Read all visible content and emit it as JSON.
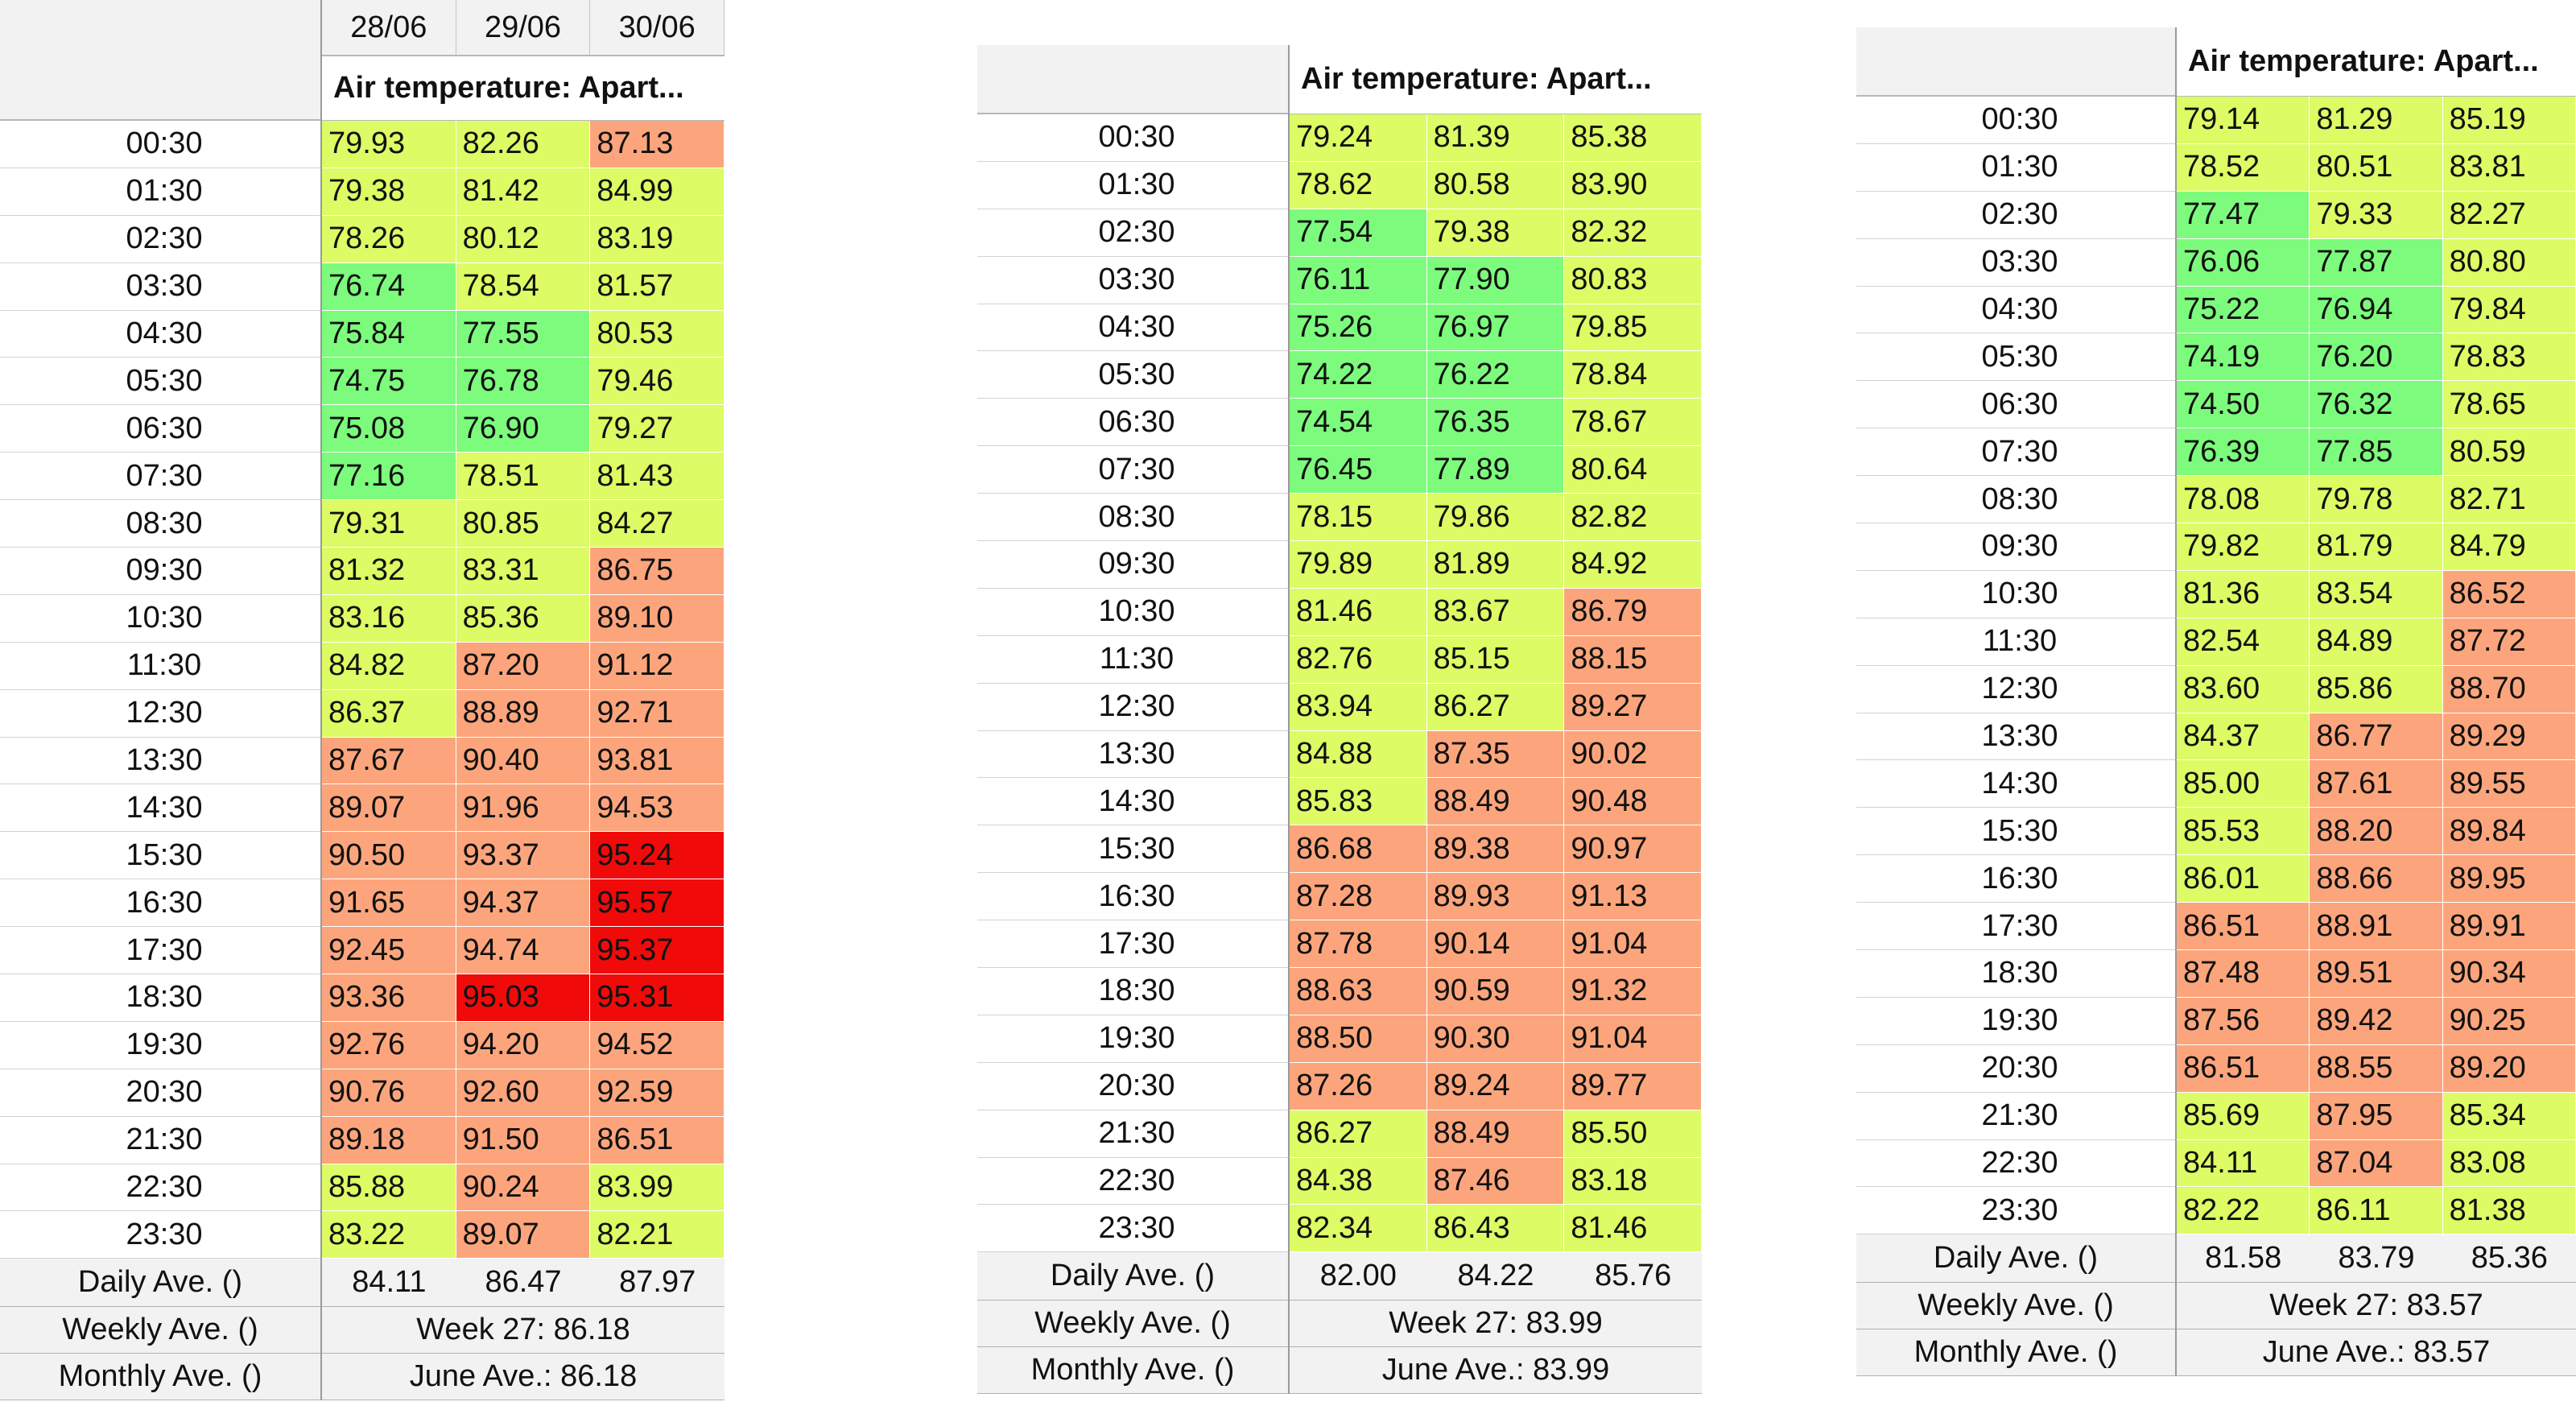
{
  "times": [
    "00:30",
    "01:30",
    "02:30",
    "03:30",
    "04:30",
    "05:30",
    "06:30",
    "07:30",
    "08:30",
    "09:30",
    "10:30",
    "11:30",
    "12:30",
    "13:30",
    "14:30",
    "15:30",
    "16:30",
    "17:30",
    "18:30",
    "19:30",
    "20:30",
    "21:30",
    "22:30",
    "23:30"
  ],
  "row_labels": {
    "daily": "Daily Ave. ()",
    "weekly": "Weekly Ave. ()",
    "monthly": "Monthly Ave. ()"
  },
  "colors": {
    "green": "#7cfb7c",
    "yellow": "#dcfb64",
    "orange": "#fca57c",
    "red": "#f00a0a"
  },
  "panels": [
    {
      "dates": [
        "28/06",
        "29/06",
        "30/06"
      ],
      "title": "Air temperature: Apart...",
      "values": [
        [
          "79.93",
          "82.26",
          "87.13"
        ],
        [
          "79.38",
          "81.42",
          "84.99"
        ],
        [
          "78.26",
          "80.12",
          "83.19"
        ],
        [
          "76.74",
          "78.54",
          "81.57"
        ],
        [
          "75.84",
          "77.55",
          "80.53"
        ],
        [
          "74.75",
          "76.78",
          "79.46"
        ],
        [
          "75.08",
          "76.90",
          "79.27"
        ],
        [
          "77.16",
          "78.51",
          "81.43"
        ],
        [
          "79.31",
          "80.85",
          "84.27"
        ],
        [
          "81.32",
          "83.31",
          "86.75"
        ],
        [
          "83.16",
          "85.36",
          "89.10"
        ],
        [
          "84.82",
          "87.20",
          "91.12"
        ],
        [
          "86.37",
          "88.89",
          "92.71"
        ],
        [
          "87.67",
          "90.40",
          "93.81"
        ],
        [
          "89.07",
          "91.96",
          "94.53"
        ],
        [
          "90.50",
          "93.37",
          "95.24"
        ],
        [
          "91.65",
          "94.37",
          "95.57"
        ],
        [
          "92.45",
          "94.74",
          "95.37"
        ],
        [
          "93.36",
          "95.03",
          "95.31"
        ],
        [
          "92.76",
          "94.20",
          "94.52"
        ],
        [
          "90.76",
          "92.60",
          "92.59"
        ],
        [
          "89.18",
          "91.50",
          "86.51"
        ],
        [
          "85.88",
          "90.24",
          "83.99"
        ],
        [
          "83.22",
          "89.07",
          "82.21"
        ]
      ],
      "daily": [
        "84.11",
        "86.47",
        "87.97"
      ],
      "weekly": "Week 27: 86.18",
      "monthly": "June Ave.: 86.18"
    },
    {
      "title": "Air temperature: Apart...",
      "values": [
        [
          "79.24",
          "81.39",
          "85.38"
        ],
        [
          "78.62",
          "80.58",
          "83.90"
        ],
        [
          "77.54",
          "79.38",
          "82.32"
        ],
        [
          "76.11",
          "77.90",
          "80.83"
        ],
        [
          "75.26",
          "76.97",
          "79.85"
        ],
        [
          "74.22",
          "76.22",
          "78.84"
        ],
        [
          "74.54",
          "76.35",
          "78.67"
        ],
        [
          "76.45",
          "77.89",
          "80.64"
        ],
        [
          "78.15",
          "79.86",
          "82.82"
        ],
        [
          "79.89",
          "81.89",
          "84.92"
        ],
        [
          "81.46",
          "83.67",
          "86.79"
        ],
        [
          "82.76",
          "85.15",
          "88.15"
        ],
        [
          "83.94",
          "86.27",
          "89.27"
        ],
        [
          "84.88",
          "87.35",
          "90.02"
        ],
        [
          "85.83",
          "88.49",
          "90.48"
        ],
        [
          "86.68",
          "89.38",
          "90.97"
        ],
        [
          "87.28",
          "89.93",
          "91.13"
        ],
        [
          "87.78",
          "90.14",
          "91.04"
        ],
        [
          "88.63",
          "90.59",
          "91.32"
        ],
        [
          "88.50",
          "90.30",
          "91.04"
        ],
        [
          "87.26",
          "89.24",
          "89.77"
        ],
        [
          "86.27",
          "88.49",
          "85.50"
        ],
        [
          "84.38",
          "87.46",
          "83.18"
        ],
        [
          "82.34",
          "86.43",
          "81.46"
        ]
      ],
      "daily": [
        "82.00",
        "84.22",
        "85.76"
      ],
      "weekly": "Week 27: 83.99",
      "monthly": "June Ave.: 83.99"
    },
    {
      "title": "Air temperature: Apart...",
      "values": [
        [
          "79.14",
          "81.29",
          "85.19"
        ],
        [
          "78.52",
          "80.51",
          "83.81"
        ],
        [
          "77.47",
          "79.33",
          "82.27"
        ],
        [
          "76.06",
          "77.87",
          "80.80"
        ],
        [
          "75.22",
          "76.94",
          "79.84"
        ],
        [
          "74.19",
          "76.20",
          "78.83"
        ],
        [
          "74.50",
          "76.32",
          "78.65"
        ],
        [
          "76.39",
          "77.85",
          "80.59"
        ],
        [
          "78.08",
          "79.78",
          "82.71"
        ],
        [
          "79.82",
          "81.79",
          "84.79"
        ],
        [
          "81.36",
          "83.54",
          "86.52"
        ],
        [
          "82.54",
          "84.89",
          "87.72"
        ],
        [
          "83.60",
          "85.86",
          "88.70"
        ],
        [
          "84.37",
          "86.77",
          "89.29"
        ],
        [
          "85.00",
          "87.61",
          "89.55"
        ],
        [
          "85.53",
          "88.20",
          "89.84"
        ],
        [
          "86.01",
          "88.66",
          "89.95"
        ],
        [
          "86.51",
          "88.91",
          "89.91"
        ],
        [
          "87.48",
          "89.51",
          "90.34"
        ],
        [
          "87.56",
          "89.42",
          "90.25"
        ],
        [
          "86.51",
          "88.55",
          "89.20"
        ],
        [
          "85.69",
          "87.95",
          "85.34"
        ],
        [
          "84.11",
          "87.04",
          "83.08"
        ],
        [
          "82.22",
          "86.11",
          "81.38"
        ]
      ],
      "daily": [
        "81.58",
        "83.79",
        "85.36"
      ],
      "weekly": "Week 27: 83.57",
      "monthly": "June Ave.: 83.57"
    }
  ]
}
